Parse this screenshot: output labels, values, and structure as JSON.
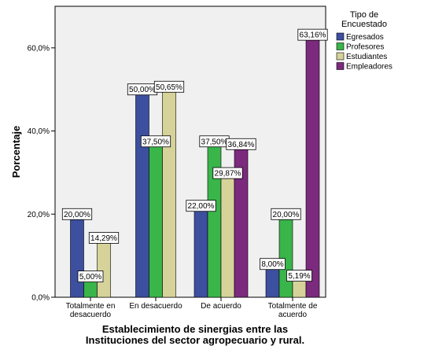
{
  "chart_data": {
    "type": "bar",
    "xlabel": [
      "Establecimiento de sinergias entre las",
      "Instituciones del sector agropecuario y rural."
    ],
    "ylabel": "Porcentaje",
    "ylim": [
      0,
      70
    ],
    "yticks": [
      0,
      20,
      40,
      60
    ],
    "ytick_labels": [
      "0,0%",
      "20,0%",
      "40,0%",
      "60,0%"
    ],
    "categories": [
      [
        "Totalmente en",
        "desacuerdo"
      ],
      [
        "En desacuerdo"
      ],
      [
        "De acuerdo"
      ],
      [
        "Totalmente de",
        "acuerdo"
      ]
    ],
    "legend": {
      "title": [
        "Tipo de",
        "Encuestado"
      ],
      "position": "right"
    },
    "grid": false,
    "series": [
      {
        "name": "Egresados",
        "color": "#3d4f9f",
        "values": [
          20.0,
          50.0,
          22.0,
          8.0
        ],
        "labels": [
          "20,00%",
          "50,00%",
          "22,00%",
          "8,00%"
        ]
      },
      {
        "name": "Profesores",
        "color": "#39b54a",
        "values": [
          5.0,
          37.5,
          37.5,
          20.0
        ],
        "labels": [
          "5,00%",
          "37,50%",
          "37,50%",
          "20,00%"
        ]
      },
      {
        "name": "Estudiantes",
        "color": "#d6d39a",
        "values": [
          14.29,
          50.65,
          29.87,
          5.19
        ],
        "labels": [
          "14,29%",
          "50,65%",
          "29,87%",
          "5,19%"
        ]
      },
      {
        "name": "Empleadores",
        "color": "#7b2a7e",
        "values": [
          null,
          null,
          36.84,
          63.16
        ],
        "labels": [
          null,
          null,
          "36,84%",
          "63,16%"
        ]
      }
    ]
  }
}
